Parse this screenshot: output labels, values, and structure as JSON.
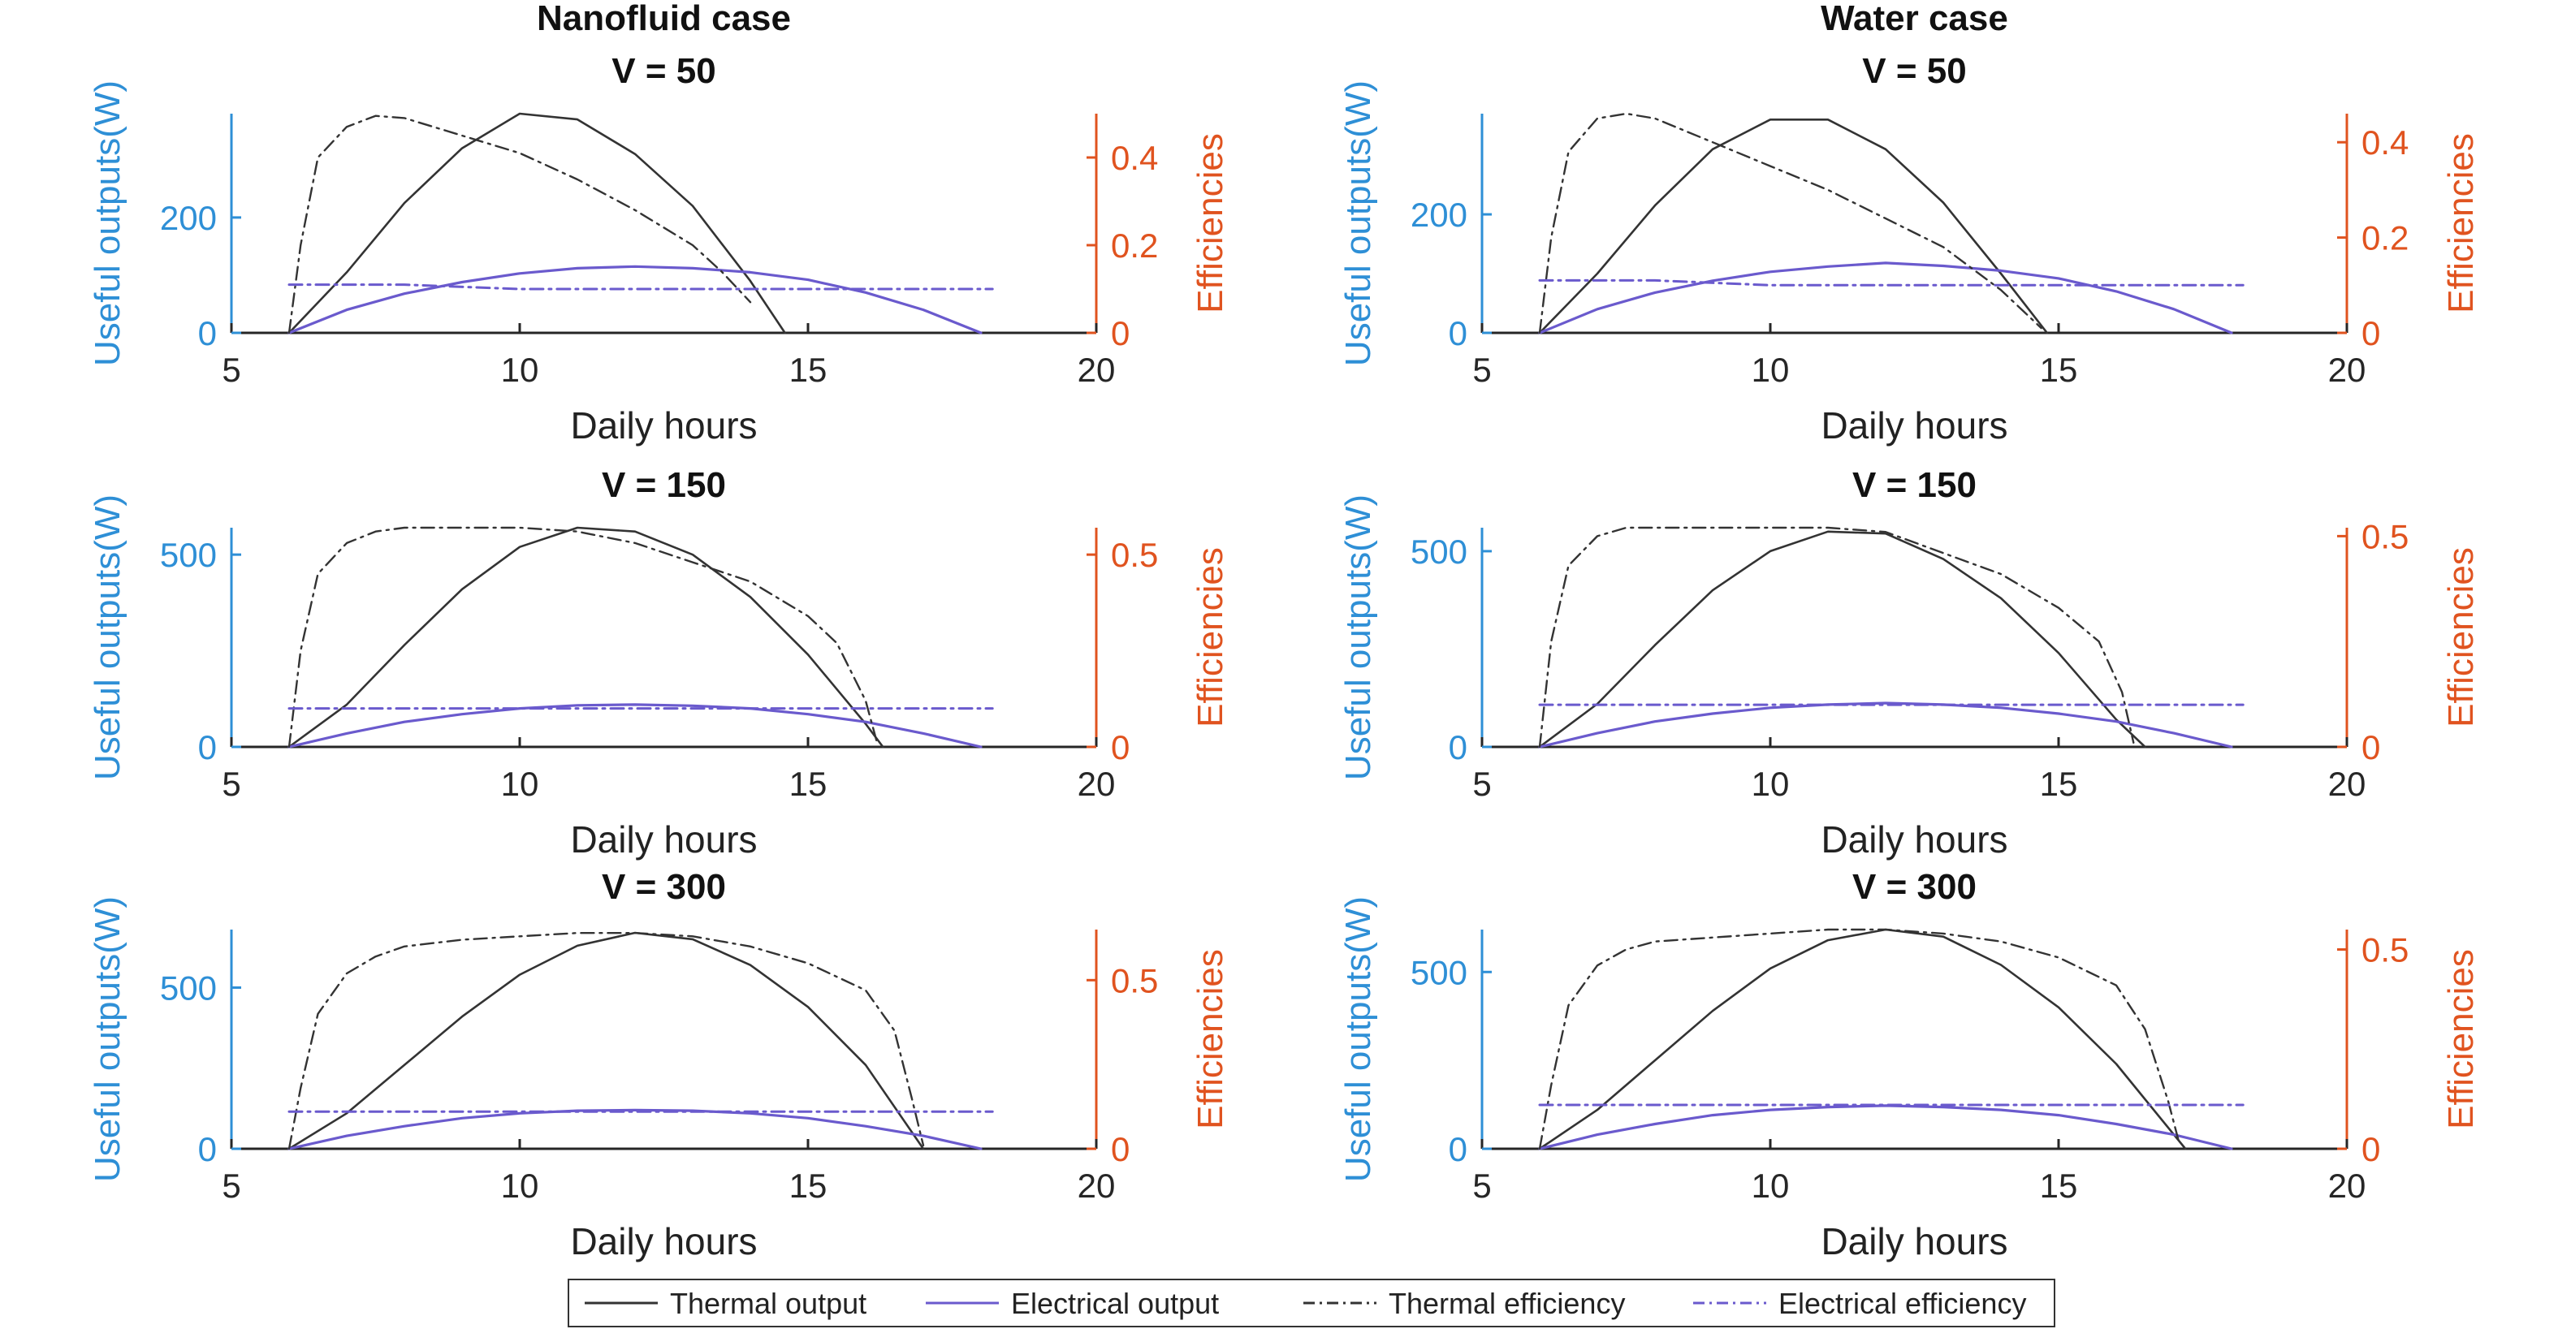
{
  "colors": {
    "left_axis": "#2e8fd6",
    "right_axis": "#e0531f",
    "axis_dark": "#262626",
    "thermal_output": "#333333",
    "electrical_output": "#6a5acd",
    "thermal_efficiency": "#333333",
    "electrical_efficiency": "#6a5acd"
  },
  "legend": {
    "items": [
      {
        "label": "Thermal output",
        "style": "solid",
        "color_key": "thermal_output"
      },
      {
        "label": "Electrical output",
        "style": "solid",
        "color_key": "electrical_output"
      },
      {
        "label": "Thermal efficiency",
        "style": "dashdot",
        "color_key": "thermal_efficiency"
      },
      {
        "label": "Electrical efficiency",
        "style": "dashdot",
        "color_key": "electrical_efficiency"
      }
    ]
  },
  "chart_data": [
    {
      "type": "line",
      "column_title": "Nanofluid case",
      "title": "V = 50",
      "xlabel": "Daily hours",
      "ylabel": "Useful outputs(W)",
      "y2label": "Efficiencies",
      "xlim": [
        5,
        20
      ],
      "xticks": [
        5,
        10,
        15,
        20
      ],
      "ylim": [
        0,
        380
      ],
      "yticks": [
        0,
        200
      ],
      "y2lim": [
        0,
        0.5
      ],
      "y2ticks": [
        0,
        0.2,
        0.4
      ],
      "series": [
        {
          "name": "Thermal output",
          "axis": "left",
          "x": [
            6.0,
            7,
            8,
            9,
            10,
            11,
            12,
            13,
            14,
            14.6
          ],
          "y": [
            0,
            105,
            225,
            320,
            380,
            370,
            310,
            220,
            90,
            0
          ]
        },
        {
          "name": "Electrical output",
          "axis": "left",
          "x": [
            6.0,
            7,
            8,
            9,
            10,
            11,
            12,
            13,
            14,
            15,
            16,
            17,
            18
          ],
          "y": [
            0,
            40,
            68,
            88,
            103,
            112,
            115,
            112,
            105,
            92,
            70,
            40,
            0
          ]
        },
        {
          "name": "Thermal efficiency",
          "axis": "right",
          "x": [
            6.0,
            6.2,
            6.5,
            7,
            7.5,
            8,
            9,
            10,
            11,
            12,
            13,
            13.5,
            14.0
          ],
          "y": [
            0,
            0.2,
            0.4,
            0.47,
            0.495,
            0.49,
            0.45,
            0.41,
            0.35,
            0.28,
            0.2,
            0.14,
            0.07
          ]
        },
        {
          "name": "Electrical efficiency",
          "axis": "right",
          "x": [
            6.0,
            8,
            10,
            12,
            14,
            16,
            18.2
          ],
          "y": [
            0.11,
            0.11,
            0.1,
            0.1,
            0.1,
            0.1,
            0.1
          ]
        }
      ]
    },
    {
      "type": "line",
      "column_title": "Water case",
      "title": "V = 50",
      "xlabel": "Daily hours",
      "ylabel": "Useful outputs(W)",
      "y2label": "Efficiencies",
      "xlim": [
        5,
        20
      ],
      "xticks": [
        5,
        10,
        15,
        20
      ],
      "ylim": [
        0,
        370
      ],
      "yticks": [
        0,
        200
      ],
      "y2lim": [
        0,
        0.46
      ],
      "y2ticks": [
        0,
        0.2,
        0.4
      ],
      "series": [
        {
          "name": "Thermal output",
          "axis": "left",
          "x": [
            6.0,
            7,
            8,
            9,
            10,
            11,
            12,
            13,
            14,
            14.8
          ],
          "y": [
            0,
            100,
            215,
            310,
            360,
            360,
            310,
            220,
            100,
            0
          ]
        },
        {
          "name": "Electrical output",
          "axis": "left",
          "x": [
            6.0,
            7,
            8,
            9,
            10,
            11,
            12,
            13,
            14,
            15,
            16,
            17,
            18
          ],
          "y": [
            0,
            40,
            68,
            88,
            103,
            112,
            118,
            113,
            105,
            92,
            70,
            40,
            0
          ]
        },
        {
          "name": "Thermal efficiency",
          "axis": "right",
          "x": [
            6.0,
            6.2,
            6.5,
            7,
            7.5,
            8,
            9,
            10,
            11,
            12,
            13,
            14,
            14.7
          ],
          "y": [
            0,
            0.2,
            0.38,
            0.45,
            0.46,
            0.45,
            0.4,
            0.35,
            0.3,
            0.24,
            0.18,
            0.09,
            0.01
          ]
        },
        {
          "name": "Electrical efficiency",
          "axis": "right",
          "x": [
            6.0,
            8,
            10,
            12,
            14,
            16,
            18.2
          ],
          "y": [
            0.11,
            0.11,
            0.1,
            0.1,
            0.1,
            0.1,
            0.1
          ]
        }
      ]
    },
    {
      "type": "line",
      "column_title": "",
      "title": "V = 150",
      "xlabel": "Daily hours",
      "ylabel": "Useful outputs(W)",
      "y2label": "Efficiencies",
      "xlim": [
        5,
        20
      ],
      "xticks": [
        5,
        10,
        15,
        20
      ],
      "ylim": [
        0,
        570
      ],
      "yticks": [
        0,
        500
      ],
      "y2lim": [
        0,
        0.57
      ],
      "y2ticks": [
        0,
        0.5
      ],
      "series": [
        {
          "name": "Thermal output",
          "axis": "left",
          "x": [
            6.0,
            7,
            8,
            9,
            10,
            11,
            12,
            13,
            14,
            15,
            16,
            16.3
          ],
          "y": [
            0,
            110,
            265,
            410,
            520,
            570,
            560,
            500,
            390,
            240,
            60,
            0
          ]
        },
        {
          "name": "Electrical output",
          "axis": "left",
          "x": [
            6.0,
            7,
            8,
            9,
            10,
            11,
            12,
            13,
            14,
            15,
            16,
            17,
            18
          ],
          "y": [
            0,
            35,
            65,
            85,
            100,
            108,
            110,
            107,
            100,
            85,
            65,
            35,
            0
          ]
        },
        {
          "name": "Thermal efficiency",
          "axis": "right",
          "x": [
            6.0,
            6.2,
            6.5,
            7,
            7.5,
            8,
            9,
            10,
            11,
            12,
            13,
            14,
            15,
            15.5,
            16.0,
            16.2
          ],
          "y": [
            0,
            0.25,
            0.45,
            0.53,
            0.56,
            0.57,
            0.57,
            0.57,
            0.56,
            0.53,
            0.48,
            0.43,
            0.34,
            0.27,
            0.12,
            0.01
          ]
        },
        {
          "name": "Electrical efficiency",
          "axis": "right",
          "x": [
            6.0,
            8,
            10,
            12,
            14,
            16,
            18.2
          ],
          "y": [
            0.1,
            0.1,
            0.1,
            0.1,
            0.1,
            0.1,
            0.1
          ]
        }
      ]
    },
    {
      "type": "line",
      "column_title": "",
      "title": "V = 150",
      "xlabel": "Daily hours",
      "ylabel": "Useful outputs(W)",
      "y2label": "Efficiencies",
      "xlim": [
        5,
        20
      ],
      "xticks": [
        5,
        10,
        15,
        20
      ],
      "ylim": [
        0,
        560
      ],
      "yticks": [
        0,
        500
      ],
      "y2lim": [
        0,
        0.52
      ],
      "y2ticks": [
        0,
        0.5
      ],
      "series": [
        {
          "name": "Thermal output",
          "axis": "left",
          "x": [
            6.0,
            7,
            8,
            9,
            10,
            11,
            12,
            13,
            14,
            15,
            16,
            16.5
          ],
          "y": [
            0,
            110,
            260,
            400,
            500,
            550,
            545,
            480,
            380,
            240,
            70,
            0
          ]
        },
        {
          "name": "Electrical output",
          "axis": "left",
          "x": [
            6.0,
            7,
            8,
            9,
            10,
            11,
            12,
            13,
            14,
            15,
            16,
            17,
            18
          ],
          "y": [
            0,
            35,
            65,
            85,
            100,
            108,
            112,
            108,
            100,
            85,
            65,
            35,
            0
          ]
        },
        {
          "name": "Thermal efficiency",
          "axis": "right",
          "x": [
            6.0,
            6.2,
            6.5,
            7,
            7.5,
            8,
            9,
            10,
            11,
            12,
            13,
            14,
            15,
            15.7,
            16.1,
            16.3
          ],
          "y": [
            0,
            0.25,
            0.43,
            0.5,
            0.52,
            0.52,
            0.52,
            0.52,
            0.52,
            0.51,
            0.46,
            0.41,
            0.33,
            0.25,
            0.13,
            0.01
          ]
        },
        {
          "name": "Electrical efficiency",
          "axis": "right",
          "x": [
            6.0,
            8,
            10,
            12,
            14,
            16,
            18.2
          ],
          "y": [
            0.1,
            0.1,
            0.1,
            0.1,
            0.1,
            0.1,
            0.1
          ]
        }
      ]
    },
    {
      "type": "line",
      "column_title": "",
      "title": "V = 300",
      "xlabel": "Daily hours",
      "ylabel": "Useful outputs(W)",
      "y2label": "Efficiencies",
      "xlim": [
        5,
        20
      ],
      "xticks": [
        5,
        10,
        15,
        20
      ],
      "ylim": [
        0,
        680
      ],
      "yticks": [
        0,
        500
      ],
      "y2lim": [
        0,
        0.65
      ],
      "y2ticks": [
        0,
        0.5
      ],
      "series": [
        {
          "name": "Thermal output",
          "axis": "left",
          "x": [
            6.0,
            7,
            8,
            9,
            10,
            11,
            12,
            13,
            14,
            15,
            16,
            17.0
          ],
          "y": [
            0,
            110,
            260,
            410,
            540,
            630,
            670,
            650,
            570,
            440,
            260,
            0
          ]
        },
        {
          "name": "Electrical output",
          "axis": "left",
          "x": [
            6.0,
            7,
            8,
            9,
            10,
            11,
            12,
            13,
            14,
            15,
            16,
            17,
            18
          ],
          "y": [
            0,
            40,
            70,
            95,
            110,
            118,
            120,
            118,
            110,
            95,
            70,
            40,
            0
          ]
        },
        {
          "name": "Thermal efficiency",
          "axis": "right",
          "x": [
            6.0,
            6.2,
            6.5,
            7,
            7.5,
            8,
            9,
            10,
            11,
            12,
            13,
            14,
            15,
            16,
            16.5,
            16.8,
            17.0
          ],
          "y": [
            0,
            0.18,
            0.4,
            0.52,
            0.57,
            0.6,
            0.62,
            0.63,
            0.64,
            0.64,
            0.63,
            0.6,
            0.55,
            0.47,
            0.35,
            0.15,
            0.01
          ]
        },
        {
          "name": "Electrical efficiency",
          "axis": "right",
          "x": [
            6.0,
            8,
            10,
            12,
            14,
            16,
            18.2
          ],
          "y": [
            0.11,
            0.11,
            0.11,
            0.11,
            0.11,
            0.11,
            0.11
          ]
        }
      ]
    },
    {
      "type": "line",
      "column_title": "",
      "title": "V = 300",
      "xlabel": "Daily hours",
      "ylabel": "Useful outputs(W)",
      "y2label": "Efficiencies",
      "xlim": [
        5,
        20
      ],
      "xticks": [
        5,
        10,
        15,
        20
      ],
      "ylim": [
        0,
        620
      ],
      "yticks": [
        0,
        500
      ],
      "y2lim": [
        0,
        0.55
      ],
      "y2ticks": [
        0,
        0.5
      ],
      "series": [
        {
          "name": "Thermal output",
          "axis": "left",
          "x": [
            6.0,
            7,
            8,
            9,
            10,
            11,
            12,
            13,
            14,
            15,
            16,
            17.2
          ],
          "y": [
            0,
            110,
            250,
            390,
            510,
            590,
            620,
            600,
            520,
            400,
            240,
            0
          ]
        },
        {
          "name": "Electrical output",
          "axis": "left",
          "x": [
            6.0,
            7,
            8,
            9,
            10,
            11,
            12,
            13,
            14,
            15,
            16,
            17,
            18
          ],
          "y": [
            0,
            40,
            70,
            95,
            110,
            118,
            122,
            118,
            110,
            95,
            70,
            40,
            0
          ]
        },
        {
          "name": "Thermal efficiency",
          "axis": "right",
          "x": [
            6.0,
            6.2,
            6.5,
            7,
            7.5,
            8,
            9,
            10,
            11,
            12,
            13,
            14,
            15,
            16,
            16.5,
            16.9,
            17.1
          ],
          "y": [
            0,
            0.16,
            0.36,
            0.46,
            0.5,
            0.52,
            0.53,
            0.54,
            0.55,
            0.55,
            0.54,
            0.52,
            0.48,
            0.41,
            0.3,
            0.12,
            0.01
          ]
        },
        {
          "name": "Electrical efficiency",
          "axis": "right",
          "x": [
            6.0,
            8,
            10,
            12,
            14,
            16,
            18.2
          ],
          "y": [
            0.11,
            0.11,
            0.11,
            0.11,
            0.11,
            0.11,
            0.11
          ]
        }
      ]
    }
  ]
}
